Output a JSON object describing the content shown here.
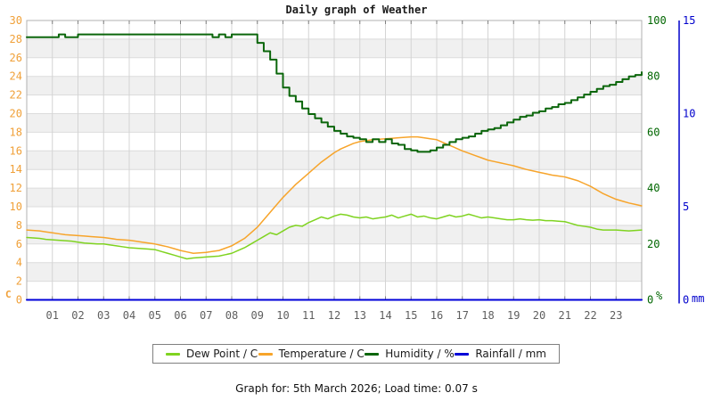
{
  "title": "Daily graph of Weather",
  "footer": {
    "text": "Graph for: 5th March 2026; Load time: 0.07 s"
  },
  "chart_data": {
    "type": "line",
    "title": "Daily graph of Weather",
    "x_axis": {
      "hours": 24,
      "tick_labels": [
        "01",
        "02",
        "03",
        "04",
        "05",
        "06",
        "07",
        "08",
        "09",
        "10",
        "11",
        "12",
        "13",
        "14",
        "15",
        "16",
        "17",
        "18",
        "19",
        "20",
        "21",
        "22",
        "23"
      ],
      "tick_color": "#5f5f5f"
    },
    "axes": {
      "temp": {
        "side": "left",
        "min": 0,
        "max": 30,
        "ticks": [
          0,
          2,
          4,
          6,
          8,
          10,
          12,
          14,
          16,
          18,
          20,
          22,
          24,
          26,
          28,
          30
        ],
        "unit_label": "C",
        "label_color": "#f0a038"
      },
      "humidity": {
        "side": "right",
        "min": 0,
        "max": 100,
        "ticks": [
          0,
          20,
          40,
          60,
          80,
          100
        ],
        "unit_label": "%",
        "label_color": "#006600"
      },
      "rain": {
        "side": "right-outer",
        "min": 0,
        "max": 15,
        "ticks": [
          0,
          5,
          10,
          15
        ],
        "unit_label": "mm",
        "label_color": "#0000cc"
      }
    },
    "grid": {
      "band_color": "#f0f0f0",
      "hline_color": "#dcdcdc",
      "vline_color": "#d4d4d4",
      "border_color": "#b0b0b0",
      "tick_color": "#808080"
    },
    "series": [
      {
        "name": "Dew Point / C",
        "axis": "temp",
        "color": "#7fd320",
        "width": 1.5,
        "step": false,
        "x_step": 0.25,
        "values": [
          6.7,
          6.65,
          6.6,
          6.5,
          6.45,
          6.4,
          6.35,
          6.3,
          6.2,
          6.1,
          6.05,
          6.0,
          6.0,
          5.9,
          5.8,
          5.7,
          5.6,
          5.55,
          5.5,
          5.45,
          5.4,
          5.2,
          5.0,
          4.8,
          4.6,
          4.4,
          4.5,
          4.55,
          4.6,
          4.65,
          4.7,
          4.85,
          5.0,
          5.3,
          5.6,
          6.0,
          6.4,
          6.8,
          7.2,
          7.0,
          7.4,
          7.8,
          8.0,
          7.9,
          8.3,
          8.6,
          8.9,
          8.7,
          9.0,
          9.2,
          9.1,
          8.9,
          8.8,
          8.9,
          8.7,
          8.8,
          8.9,
          9.1,
          8.8,
          9.0,
          9.2,
          8.9,
          9.0,
          8.8,
          8.7,
          8.9,
          9.1,
          8.9,
          9.0,
          9.2,
          9.0,
          8.8,
          8.9,
          8.8,
          8.7,
          8.6,
          8.6,
          8.7,
          8.6,
          8.55,
          8.6,
          8.5,
          8.5,
          8.45,
          8.4,
          8.2,
          8.0,
          7.9,
          7.8,
          7.6,
          7.5,
          7.5,
          7.5,
          7.45,
          7.4,
          7.45,
          7.5
        ]
      },
      {
        "name": "Temperature / C",
        "axis": "temp",
        "color": "#f7a42a",
        "width": 1.5,
        "step": false,
        "x_step": 0.25,
        "values": [
          7.5,
          7.45,
          7.4,
          7.3,
          7.2,
          7.1,
          7.0,
          6.95,
          6.9,
          6.85,
          6.8,
          6.75,
          6.7,
          6.6,
          6.5,
          6.45,
          6.4,
          6.3,
          6.2,
          6.1,
          6.0,
          5.85,
          5.7,
          5.5,
          5.3,
          5.15,
          5.0,
          5.05,
          5.1,
          5.2,
          5.3,
          5.55,
          5.8,
          6.2,
          6.6,
          7.2,
          7.8,
          8.6,
          9.4,
          10.2,
          11.0,
          11.7,
          12.4,
          13.0,
          13.6,
          14.2,
          14.8,
          15.3,
          15.8,
          16.2,
          16.5,
          16.8,
          17.0,
          17.1,
          17.2,
          17.25,
          17.3,
          17.35,
          17.4,
          17.45,
          17.5,
          17.5,
          17.4,
          17.3,
          17.2,
          16.9,
          16.6,
          16.3,
          16.0,
          15.75,
          15.5,
          15.25,
          15.0,
          14.85,
          14.7,
          14.55,
          14.4,
          14.2,
          14.0,
          13.85,
          13.7,
          13.55,
          13.4,
          13.3,
          13.2,
          13.0,
          12.8,
          12.5,
          12.2,
          11.8,
          11.4,
          11.1,
          10.8,
          10.6,
          10.4,
          10.25,
          10.1
        ]
      },
      {
        "name": "Humidity / %",
        "axis": "humidity",
        "color": "#0b660b",
        "width": 2,
        "step": true,
        "x_step": 0.25,
        "values": [
          94,
          94,
          94,
          94,
          94,
          95,
          94,
          94,
          95,
          95,
          95,
          95,
          95,
          95,
          95,
          95,
          95,
          95,
          95,
          95,
          95,
          95,
          95,
          95,
          95,
          95,
          95,
          95,
          95,
          94,
          95,
          94,
          95,
          95,
          95,
          95,
          92,
          89,
          86,
          81,
          76,
          73,
          71,
          68.5,
          66.5,
          65,
          63.5,
          62,
          60.5,
          59.5,
          58.5,
          58,
          57.5,
          56.5,
          57.5,
          56.5,
          57.5,
          56,
          55.5,
          54,
          53.5,
          53,
          53,
          53.5,
          54.5,
          55.5,
          56.5,
          57.5,
          58,
          58.5,
          59.5,
          60.5,
          61,
          61.5,
          62.5,
          63.5,
          64.5,
          65.5,
          66,
          67,
          67.5,
          68.5,
          69,
          70,
          70.5,
          71.5,
          72.5,
          73.5,
          74.5,
          75.5,
          76.5,
          77,
          78,
          79,
          80,
          80.5,
          81.5
        ]
      },
      {
        "name": "Rainfall / mm",
        "axis": "rain",
        "color": "#0000d8",
        "width": 2,
        "step": false,
        "x": [
          0,
          24
        ],
        "values": [
          0,
          0
        ]
      }
    ]
  }
}
